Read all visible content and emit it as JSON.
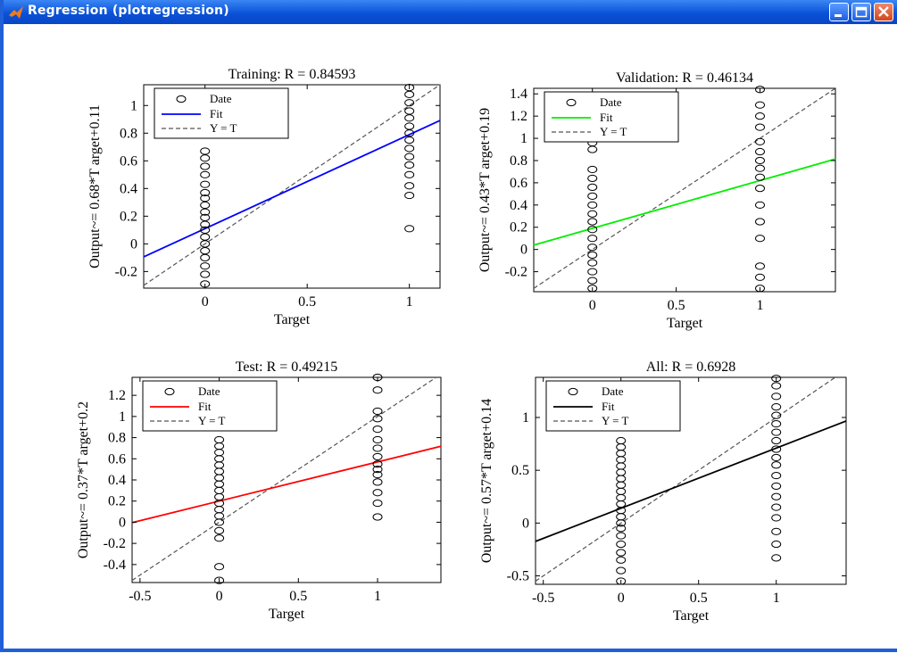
{
  "window": {
    "title": "Regression (plotregression)",
    "controls": {
      "minimize": "minimize-icon",
      "maximize": "maximize-icon",
      "close": "close-icon"
    },
    "title_bar_color": "#0a52d8"
  },
  "chart_data": [
    {
      "type": "scatter",
      "title": "Training: R = 0.84593",
      "xlabel": "Target",
      "ylabel": "Output~= 0.68*T arget+0.11",
      "xlim": [
        -0.3,
        1.15
      ],
      "ylim": [
        -0.32,
        1.15
      ],
      "xticks": [
        0,
        0.5,
        1
      ],
      "xtick_labels": [
        "0",
        "0.5",
        "1"
      ],
      "yticks": [
        -0.2,
        0,
        0.2,
        0.4,
        0.6,
        0.8,
        1
      ],
      "ytick_labels": [
        "-0.2",
        "0",
        "0.2",
        "0.4",
        "0.6",
        "0.8",
        "1"
      ],
      "legend": {
        "position": "top-left",
        "entries": [
          "Date",
          "Fit",
          "Y = T"
        ]
      },
      "fit_color": "#0000ff",
      "fit": {
        "slope": 0.68,
        "intercept": 0.11
      },
      "series": [
        {
          "name": "Date",
          "x": 0,
          "y": [
            -0.29,
            -0.22,
            -0.16,
            -0.1,
            -0.05,
            0.0,
            0.05,
            0.1,
            0.14,
            0.19,
            0.23,
            0.28,
            0.33,
            0.37,
            0.43,
            0.5,
            0.56,
            0.62,
            0.67
          ]
        },
        {
          "name": "Date",
          "x": 1,
          "y": [
            0.11,
            0.35,
            0.42,
            0.5,
            0.57,
            0.63,
            0.69,
            0.75,
            0.8,
            0.85,
            0.91,
            0.96,
            1.02,
            1.08,
            1.13
          ]
        }
      ]
    },
    {
      "type": "scatter",
      "title": "Validation: R = 0.46134",
      "xlabel": "Target",
      "ylabel": "Output~= 0.43*T arget+0.19",
      "xlim": [
        -0.35,
        1.45
      ],
      "ylim": [
        -0.38,
        1.45
      ],
      "xticks": [
        0,
        0.5,
        1
      ],
      "xtick_labels": [
        "0",
        "0.5",
        "1"
      ],
      "yticks": [
        -0.2,
        0,
        0.2,
        0.4,
        0.6,
        0.8,
        1,
        1.2,
        1.4
      ],
      "ytick_labels": [
        "-0.2",
        "0",
        "0.2",
        "0.4",
        "0.6",
        "0.8",
        "1",
        "1.2",
        "1.4"
      ],
      "legend": {
        "position": "top-left",
        "entries": [
          "Date",
          "Fit",
          "Y = T"
        ]
      },
      "fit_color": "#00ee00",
      "fit": {
        "slope": 0.43,
        "intercept": 0.19
      },
      "series": [
        {
          "name": "Date",
          "x": 0,
          "y": [
            -0.35,
            -0.28,
            -0.2,
            -0.12,
            -0.05,
            0.02,
            0.1,
            0.18,
            0.25,
            0.32,
            0.4,
            0.48,
            0.56,
            0.64,
            0.72,
            0.9,
            0.96,
            1.05
          ]
        },
        {
          "name": "Date",
          "x": 1,
          "y": [
            -0.35,
            -0.25,
            -0.15,
            0.1,
            0.25,
            0.4,
            0.55,
            0.65,
            0.73,
            0.8,
            0.88,
            0.97,
            1.1,
            1.2,
            1.3,
            1.44
          ]
        }
      ]
    },
    {
      "type": "scatter",
      "title": "Test: R = 0.49215",
      "xlabel": "Target",
      "ylabel": "Output~= 0.37*T arget+0.2",
      "xlim": [
        -0.55,
        1.4
      ],
      "ylim": [
        -0.57,
        1.37
      ],
      "xticks": [
        -0.5,
        0,
        0.5,
        1
      ],
      "xtick_labels": [
        "-0.5",
        "0",
        "0.5",
        "1"
      ],
      "yticks": [
        -0.4,
        -0.2,
        0,
        0.2,
        0.4,
        0.6,
        0.8,
        1,
        1.2
      ],
      "ytick_labels": [
        "-0.4",
        "-0.2",
        "0",
        "0.2",
        "0.4",
        "0.6",
        "0.8",
        "1",
        "1.2"
      ],
      "legend": {
        "position": "top-left",
        "entries": [
          "Date",
          "Fit",
          "Y = T"
        ]
      },
      "fit_color": "#ff0000",
      "fit": {
        "slope": 0.37,
        "intercept": 0.2
      },
      "series": [
        {
          "name": "Date",
          "x": 0,
          "y": [
            -0.55,
            -0.42,
            -0.15,
            -0.08,
            0.0,
            0.06,
            0.12,
            0.18,
            0.24,
            0.3,
            0.36,
            0.42,
            0.48,
            0.54,
            0.6,
            0.66,
            0.72,
            0.78
          ]
        },
        {
          "name": "Date",
          "x": 1,
          "y": [
            0.05,
            0.18,
            0.28,
            0.38,
            0.45,
            0.5,
            0.55,
            0.62,
            0.7,
            0.78,
            0.88,
            0.98,
            1.05,
            1.25,
            1.37
          ]
        }
      ]
    },
    {
      "type": "scatter",
      "title": "All: R = 0.6928",
      "xlabel": "Target",
      "ylabel": "Output~= 0.57*T arget+0.14",
      "xlim": [
        -0.55,
        1.45
      ],
      "ylim": [
        -0.58,
        1.38
      ],
      "xticks": [
        -0.5,
        0,
        0.5,
        1
      ],
      "xtick_labels": [
        "-0.5",
        "0",
        "0.5",
        "1"
      ],
      "yticks": [
        -0.5,
        0,
        0.5,
        1
      ],
      "ytick_labels": [
        "-0.5",
        "0",
        "0.5",
        "1"
      ],
      "legend": {
        "position": "top-left",
        "entries": [
          "Date",
          "Fit",
          "Y = T"
        ]
      },
      "fit_color": "#000000",
      "fit": {
        "slope": 0.57,
        "intercept": 0.14
      },
      "series": [
        {
          "name": "Date",
          "x": 0,
          "y": [
            -0.55,
            -0.45,
            -0.35,
            -0.28,
            -0.2,
            -0.12,
            -0.05,
            0.0,
            0.06,
            0.12,
            0.18,
            0.24,
            0.3,
            0.36,
            0.42,
            0.48,
            0.54,
            0.6,
            0.66,
            0.72,
            0.78
          ]
        },
        {
          "name": "Date",
          "x": 1,
          "y": [
            -0.33,
            -0.2,
            -0.08,
            0.05,
            0.15,
            0.25,
            0.35,
            0.45,
            0.55,
            0.62,
            0.7,
            0.78,
            0.86,
            0.94,
            1.02,
            1.1,
            1.2,
            1.3,
            1.37
          ]
        }
      ]
    }
  ]
}
